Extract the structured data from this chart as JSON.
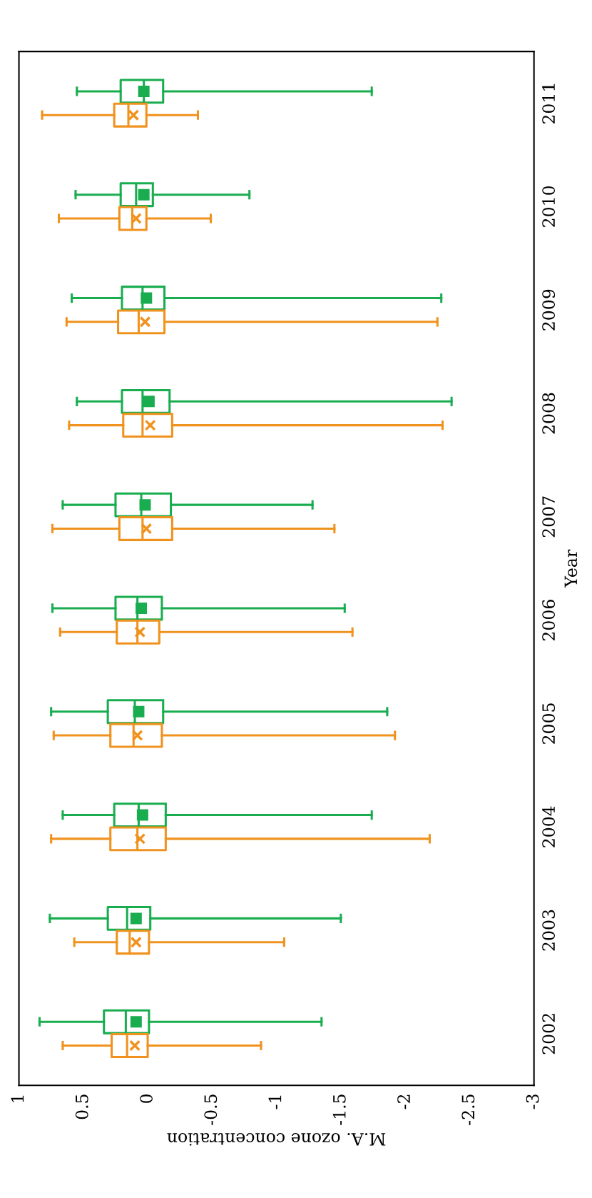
{
  "chart_data": {
    "type": "box",
    "orientation": "horizontal",
    "xlabel": "M.A. ozone concentration",
    "ylabel": "Year",
    "categories": [
      "2011",
      "2010",
      "2009",
      "2008",
      "2007",
      "2006",
      "2005",
      "2004",
      "2003",
      "2002"
    ],
    "xlim": [
      1,
      -3
    ],
    "xticks": [
      1,
      0.5,
      0,
      -0.5,
      -1,
      -1.5,
      -2,
      -2.5,
      -3
    ],
    "grid": false,
    "legend": false,
    "series": [
      {
        "color": "#19ad50",
        "marker": "square",
        "boxes": [
          {
            "low": -1.74,
            "q1": -0.12,
            "median": 0.03,
            "q3": 0.21,
            "high": 0.55,
            "mean": 0.03
          },
          {
            "low": -0.79,
            "q1": -0.04,
            "median": 0.09,
            "q3": 0.21,
            "high": 0.56,
            "mean": 0.03
          },
          {
            "low": -2.28,
            "q1": -0.13,
            "median": 0.04,
            "q3": 0.2,
            "high": 0.59,
            "mean": 0.01
          },
          {
            "low": -2.36,
            "q1": -0.17,
            "median": 0.04,
            "q3": 0.2,
            "high": 0.55,
            "mean": -0.01
          },
          {
            "low": -1.28,
            "q1": -0.18,
            "median": 0.05,
            "q3": 0.25,
            "high": 0.66,
            "mean": 0.02
          },
          {
            "low": -1.53,
            "q1": -0.11,
            "median": 0.08,
            "q3": 0.25,
            "high": 0.74,
            "mean": 0.05
          },
          {
            "low": -1.86,
            "q1": -0.12,
            "median": 0.1,
            "q3": 0.31,
            "high": 0.75,
            "mean": 0.07
          },
          {
            "low": -1.74,
            "q1": -0.14,
            "median": 0.07,
            "q3": 0.26,
            "high": 0.66,
            "mean": 0.04
          },
          {
            "low": -1.5,
            "q1": -0.02,
            "median": 0.16,
            "q3": 0.31,
            "high": 0.76,
            "mean": 0.09
          },
          {
            "low": -1.35,
            "q1": -0.01,
            "median": 0.17,
            "q3": 0.34,
            "high": 0.84,
            "mean": 0.09
          }
        ]
      },
      {
        "color": "#f0921e",
        "marker": "cross",
        "boxes": [
          {
            "low": -0.39,
            "q1": 0.01,
            "median": 0.15,
            "q3": 0.26,
            "high": 0.82,
            "mean": 0.11
          },
          {
            "low": -0.49,
            "q1": 0.01,
            "median": 0.12,
            "q3": 0.22,
            "high": 0.69,
            "mean": 0.09
          },
          {
            "low": -2.25,
            "q1": -0.13,
            "median": 0.07,
            "q3": 0.23,
            "high": 0.63,
            "mean": 0.02
          },
          {
            "low": -2.29,
            "q1": -0.19,
            "median": 0.04,
            "q3": 0.19,
            "high": 0.61,
            "mean": -0.02
          },
          {
            "low": -1.45,
            "q1": -0.19,
            "median": 0.04,
            "q3": 0.22,
            "high": 0.74,
            "mean": 0.01
          },
          {
            "low": -1.59,
            "q1": -0.09,
            "median": 0.08,
            "q3": 0.24,
            "high": 0.68,
            "mean": 0.06
          },
          {
            "low": -1.92,
            "q1": -0.11,
            "median": 0.11,
            "q3": 0.29,
            "high": 0.73,
            "mean": 0.08
          },
          {
            "low": -2.19,
            "q1": -0.14,
            "median": 0.08,
            "q3": 0.29,
            "high": 0.75,
            "mean": 0.06
          },
          {
            "low": -1.06,
            "q1": -0.01,
            "median": 0.14,
            "q3": 0.24,
            "high": 0.57,
            "mean": 0.09
          },
          {
            "low": -0.88,
            "q1": 0.0,
            "median": 0.16,
            "q3": 0.28,
            "high": 0.66,
            "mean": 0.1
          }
        ]
      }
    ]
  }
}
